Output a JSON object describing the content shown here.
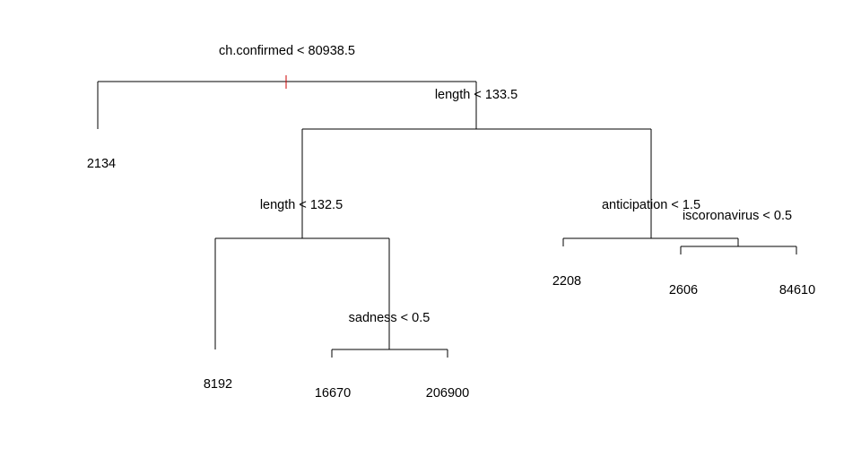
{
  "tree": {
    "splits": {
      "root": "ch.confirmed < 80938.5",
      "length_1": "length < 133.5",
      "length_2": "length < 132.5",
      "anticipation": "anticipation < 1.5",
      "iscoronavirus": "iscoronavirus < 0.5",
      "sadness": "sadness < 0.5"
    },
    "leaves": {
      "leaf_1": "2134",
      "leaf_2": "8192",
      "leaf_3": "16670",
      "leaf_4": "206900",
      "leaf_5": "2208",
      "leaf_6": "2606",
      "leaf_7": "84610"
    },
    "colors": {
      "lines": "#000000",
      "root_marker": "#cc0000",
      "background": "#ffffff"
    }
  }
}
